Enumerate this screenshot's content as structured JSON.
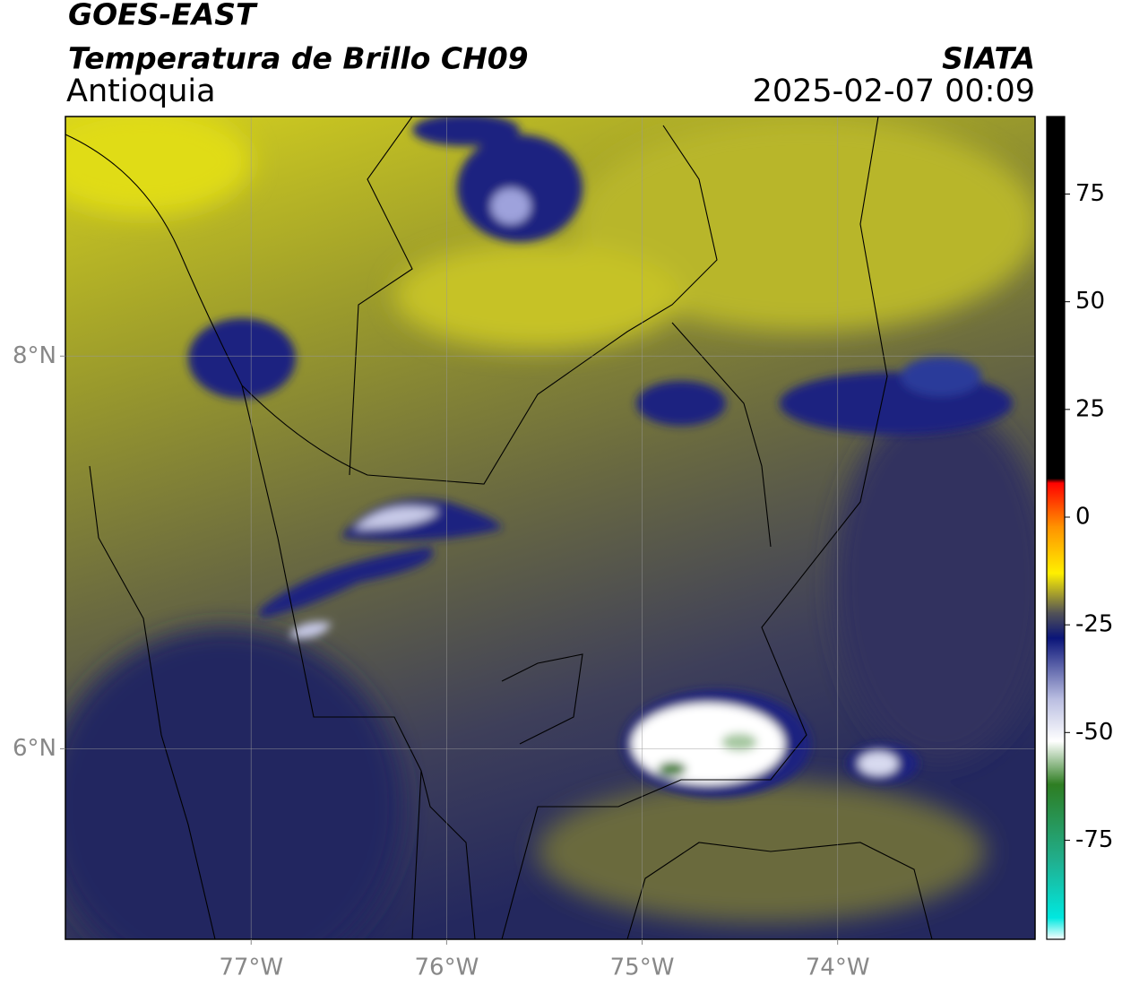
{
  "header": {
    "title": "GOES-EAST",
    "subtitle": "Temperatura de Brillo CH09",
    "region": "Antioquia",
    "source": "SIATA",
    "datetime": "2025-02-07 00:09"
  },
  "map": {
    "xlim": [
      -77.95,
      -72.99
    ],
    "ylim": [
      5.03,
      9.22
    ],
    "xticks": [
      {
        "value": -77,
        "label": "77°W"
      },
      {
        "value": -76,
        "label": "76°W"
      },
      {
        "value": -75,
        "label": "75°W"
      },
      {
        "value": -74,
        "label": "74°W"
      }
    ],
    "yticks": [
      {
        "value": 6,
        "label": "6°N"
      },
      {
        "value": 8,
        "label": "8°N"
      }
    ],
    "grid": true
  },
  "colorbar": {
    "lim": [
      -98,
      93
    ],
    "ticks": [
      75,
      50,
      25,
      0,
      -25,
      -50,
      -75
    ],
    "stops": [
      {
        "value": -98,
        "color": "#ffffff"
      },
      {
        "value": -93,
        "color": "#00e8e0"
      },
      {
        "value": -80,
        "color": "#20b090"
      },
      {
        "value": -62,
        "color": "#2e7d22"
      },
      {
        "value": -52,
        "color": "#ffffff"
      },
      {
        "value": -42,
        "color": "#b8bce0"
      },
      {
        "value": -28,
        "color": "#0a1478"
      },
      {
        "value": -22,
        "color": "#555555"
      },
      {
        "value": -13,
        "color": "#fff000"
      },
      {
        "value": -2,
        "color": "#ff9000"
      },
      {
        "value": 8,
        "color": "#ff0000"
      },
      {
        "value": 9,
        "color": "#000000"
      },
      {
        "value": 93,
        "color": "#000000"
      }
    ]
  }
}
